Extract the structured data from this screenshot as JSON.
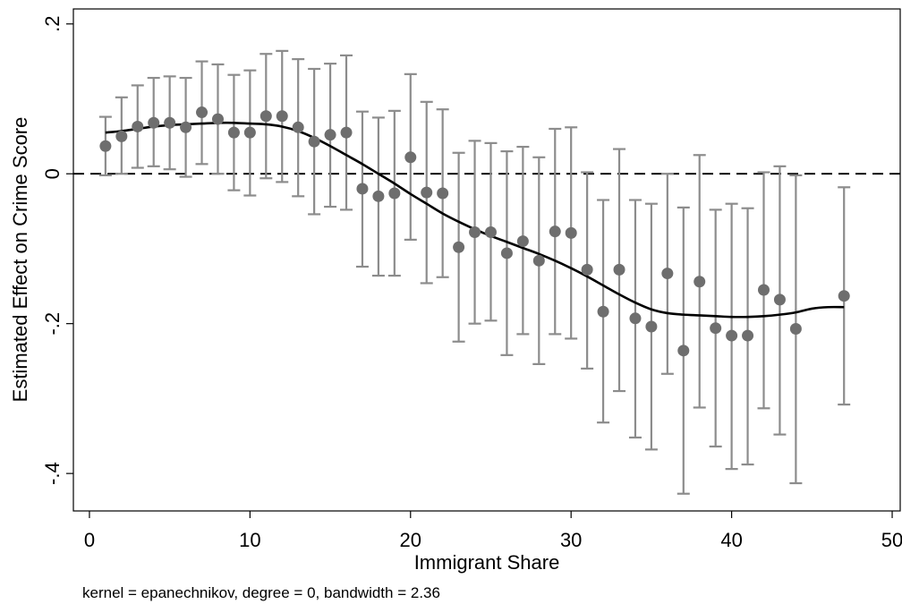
{
  "chart_data": {
    "type": "scatter",
    "xlabel": "Immigrant Share",
    "ylabel": "Estimated Effect on Crime Score",
    "note": "kernel = epanechnikov, degree = 0, bandwidth = 2.36",
    "xlim": [
      -1,
      50.5
    ],
    "ylim": [
      -0.45,
      0.22
    ],
    "xticks": [
      0,
      10,
      20,
      30,
      40,
      50
    ],
    "xtick_labels": [
      "0",
      "10",
      "20",
      "30",
      "40",
      "50"
    ],
    "yticks": [
      0.2,
      0,
      -0.2,
      -0.4
    ],
    "ytick_labels": [
      ".2",
      "0",
      "-.2",
      "-.4"
    ],
    "grid": false,
    "reference_line": {
      "y": 0,
      "style": "dashed"
    },
    "series": [
      {
        "type": "scatter-errorbar",
        "points": [
          {
            "x": 1,
            "y": 0.037,
            "lo": -0.002,
            "hi": 0.076
          },
          {
            "x": 2,
            "y": 0.05,
            "lo": 0.0,
            "hi": 0.102
          },
          {
            "x": 3,
            "y": 0.063,
            "lo": 0.008,
            "hi": 0.118
          },
          {
            "x": 4,
            "y": 0.068,
            "lo": 0.01,
            "hi": 0.128
          },
          {
            "x": 5,
            "y": 0.068,
            "lo": 0.006,
            "hi": 0.13
          },
          {
            "x": 6,
            "y": 0.062,
            "lo": -0.004,
            "hi": 0.128
          },
          {
            "x": 7,
            "y": 0.082,
            "lo": 0.013,
            "hi": 0.15
          },
          {
            "x": 8,
            "y": 0.073,
            "lo": 0.0,
            "hi": 0.146
          },
          {
            "x": 9,
            "y": 0.055,
            "lo": -0.022,
            "hi": 0.132
          },
          {
            "x": 10,
            "y": 0.055,
            "lo": -0.029,
            "hi": 0.138
          },
          {
            "x": 11,
            "y": 0.077,
            "lo": -0.006,
            "hi": 0.16
          },
          {
            "x": 12,
            "y": 0.077,
            "lo": -0.011,
            "hi": 0.164
          },
          {
            "x": 13,
            "y": 0.062,
            "lo": -0.03,
            "hi": 0.153
          },
          {
            "x": 14,
            "y": 0.043,
            "lo": -0.054,
            "hi": 0.14
          },
          {
            "x": 15,
            "y": 0.052,
            "lo": -0.044,
            "hi": 0.147
          },
          {
            "x": 16,
            "y": 0.055,
            "lo": -0.048,
            "hi": 0.158
          },
          {
            "x": 17,
            "y": -0.02,
            "lo": -0.124,
            "hi": 0.083
          },
          {
            "x": 18,
            "y": -0.03,
            "lo": -0.136,
            "hi": 0.075
          },
          {
            "x": 19,
            "y": -0.026,
            "lo": -0.136,
            "hi": 0.084
          },
          {
            "x": 20,
            "y": 0.022,
            "lo": -0.088,
            "hi": 0.133
          },
          {
            "x": 21,
            "y": -0.025,
            "lo": -0.146,
            "hi": 0.096
          },
          {
            "x": 22,
            "y": -0.026,
            "lo": -0.138,
            "hi": 0.086
          },
          {
            "x": 23,
            "y": -0.098,
            "lo": -0.224,
            "hi": 0.028
          },
          {
            "x": 24,
            "y": -0.078,
            "lo": -0.2,
            "hi": 0.044
          },
          {
            "x": 25,
            "y": -0.078,
            "lo": -0.196,
            "hi": 0.041
          },
          {
            "x": 26,
            "y": -0.106,
            "lo": -0.242,
            "hi": 0.03
          },
          {
            "x": 27,
            "y": -0.09,
            "lo": -0.214,
            "hi": 0.036
          },
          {
            "x": 28,
            "y": -0.116,
            "lo": -0.254,
            "hi": 0.022
          },
          {
            "x": 29,
            "y": -0.077,
            "lo": -0.214,
            "hi": 0.06
          },
          {
            "x": 30,
            "y": -0.079,
            "lo": -0.22,
            "hi": 0.062
          },
          {
            "x": 31,
            "y": -0.128,
            "lo": -0.26,
            "hi": 0.002
          },
          {
            "x": 32,
            "y": -0.184,
            "lo": -0.332,
            "hi": -0.035
          },
          {
            "x": 33,
            "y": -0.128,
            "lo": -0.29,
            "hi": 0.033
          },
          {
            "x": 34,
            "y": -0.193,
            "lo": -0.352,
            "hi": -0.035
          },
          {
            "x": 35,
            "y": -0.204,
            "lo": -0.368,
            "hi": -0.04
          },
          {
            "x": 36,
            "y": -0.133,
            "lo": -0.267,
            "hi": 0.0
          },
          {
            "x": 37,
            "y": -0.236,
            "lo": -0.427,
            "hi": -0.045
          },
          {
            "x": 38,
            "y": -0.144,
            "lo": -0.312,
            "hi": 0.025
          },
          {
            "x": 39,
            "y": -0.206,
            "lo": -0.364,
            "hi": -0.048
          },
          {
            "x": 40,
            "y": -0.216,
            "lo": -0.394,
            "hi": -0.04
          },
          {
            "x": 41,
            "y": -0.216,
            "lo": -0.388,
            "hi": -0.046
          },
          {
            "x": 42,
            "y": -0.155,
            "lo": -0.313,
            "hi": 0.002
          },
          {
            "x": 43,
            "y": -0.168,
            "lo": -0.348,
            "hi": 0.01
          },
          {
            "x": 44,
            "y": -0.207,
            "lo": -0.413,
            "hi": -0.002
          },
          {
            "x": 47,
            "y": -0.163,
            "lo": -0.308,
            "hi": -0.018
          }
        ]
      },
      {
        "type": "line",
        "x": [
          1,
          2,
          3,
          4,
          5,
          6,
          7,
          8,
          9,
          10,
          11,
          12,
          13,
          14,
          15,
          16,
          17,
          18,
          19,
          20,
          21,
          22,
          23,
          24,
          25,
          26,
          27,
          28,
          29,
          30,
          31,
          32,
          33,
          34,
          35,
          36,
          37,
          38,
          39,
          40,
          41,
          42,
          43,
          44,
          45,
          46,
          47
        ],
        "y": [
          0.055,
          0.057,
          0.06,
          0.063,
          0.065,
          0.066,
          0.067,
          0.068,
          0.068,
          0.067,
          0.066,
          0.063,
          0.057,
          0.048,
          0.037,
          0.025,
          0.013,
          0.0,
          -0.013,
          -0.027,
          -0.04,
          -0.053,
          -0.064,
          -0.074,
          -0.083,
          -0.091,
          -0.099,
          -0.107,
          -0.116,
          -0.126,
          -0.137,
          -0.149,
          -0.161,
          -0.172,
          -0.181,
          -0.186,
          -0.188,
          -0.189,
          -0.19,
          -0.191,
          -0.191,
          -0.19,
          -0.188,
          -0.185,
          -0.18,
          -0.178,
          -0.178
        ]
      }
    ],
    "colors": {
      "marker": "#6e6e6e",
      "errorbar": "#8c8c8c",
      "fit_line": "#000000",
      "reference_line": "#000000",
      "axis": "#000000"
    }
  }
}
